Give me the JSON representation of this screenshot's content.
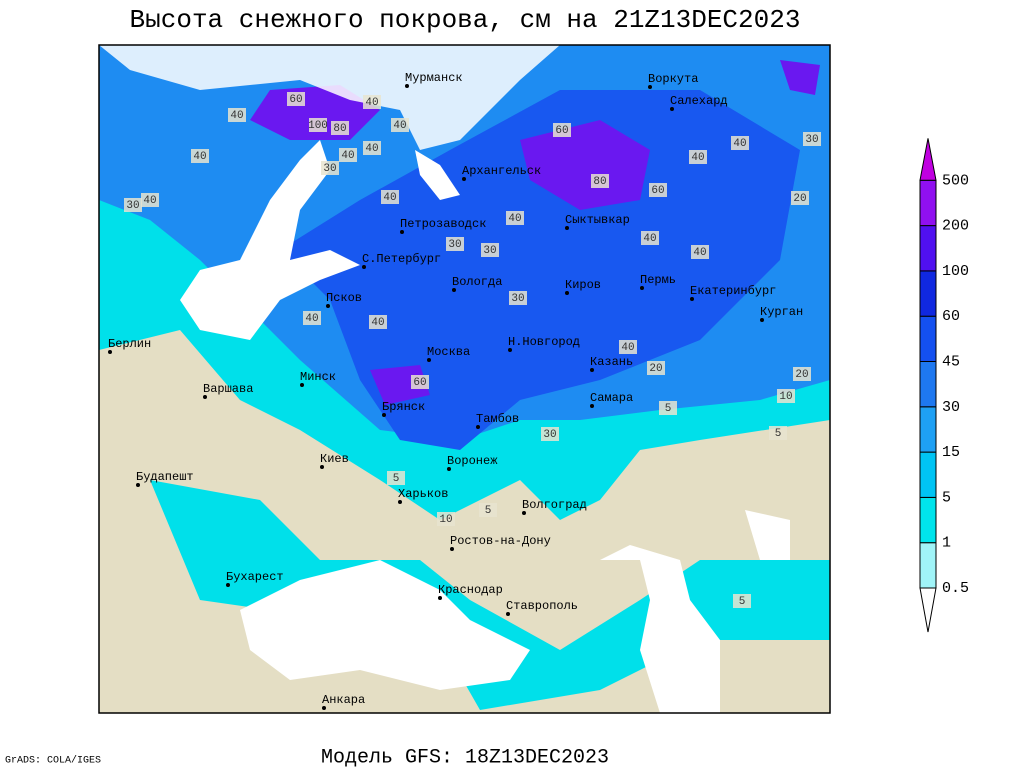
{
  "title": "Высота снежного покрова, см на 21Z13DEC2023",
  "footer": "Модель GFS: 18Z13DEC2023",
  "credit": "GrADS: COLA/IGES",
  "legend": {
    "levels": [
      0.5,
      1,
      5,
      15,
      30,
      45,
      60,
      100,
      200,
      500
    ],
    "colors": [
      "#ffffff",
      "#a0f4f8",
      "#00e4ec",
      "#00c4f4",
      "#1ea0f4",
      "#1e78f0",
      "#1450f0",
      "#1028e0",
      "#5010f0",
      "#9010f0",
      "#c000e0"
    ]
  },
  "cities": [
    "Мурманск",
    "Воркута",
    "Салехард",
    "Архангельск",
    "Петрозаводск",
    "Сыктывкар",
    "С.Петербург",
    "Вологда",
    "Киров",
    "Пермь",
    "Екатеринбург",
    "Курган",
    "Псков",
    "Берлин",
    "Н.Новгород",
    "Москва",
    "Казань",
    "Минск",
    "Варшава",
    "Брянск",
    "Самара",
    "Тамбов",
    "Киев",
    "Воронеж",
    "Будапешт",
    "Харьков",
    "Волгоград",
    "Ростов-на-Дону",
    "Бухарест",
    "Краснодар",
    "Ставрополь",
    "Анкара"
  ],
  "contour_labels": [
    60,
    40,
    100,
    80,
    40,
    40,
    40,
    30,
    40,
    30,
    40,
    40,
    60,
    80,
    60,
    40,
    40,
    30,
    40,
    40,
    30,
    30,
    40,
    30,
    40,
    40,
    40,
    60,
    40,
    20,
    20,
    20,
    10,
    5,
    30,
    5,
    10,
    5,
    5,
    5
  ]
}
